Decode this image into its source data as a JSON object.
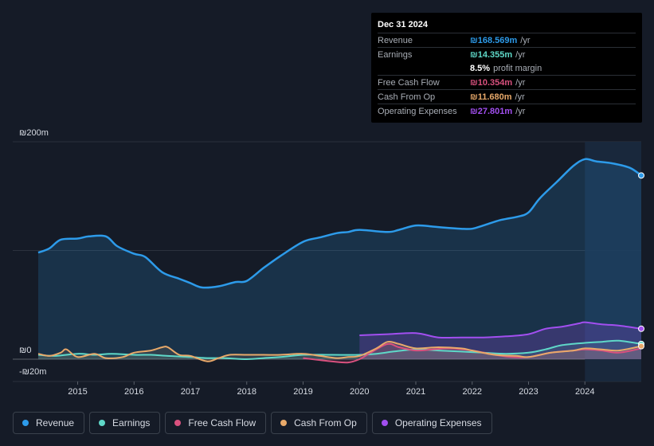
{
  "chart_data": {
    "type": "area",
    "currency_symbol": "₪",
    "y_labels": [
      "₪200m",
      "₪0",
      "-₪20m"
    ],
    "ylim": [
      -20,
      200
    ],
    "x_ticks": [
      "2015",
      "2016",
      "2017",
      "2018",
      "2019",
      "2020",
      "2021",
      "2022",
      "2023",
      "2024"
    ],
    "x_tick_values": [
      2015,
      2016,
      2017,
      2018,
      2019,
      2020,
      2021,
      2022,
      2023,
      2024
    ],
    "xlim": [
      2014.3,
      2025.0
    ],
    "forecast_start": 2024.0,
    "series": [
      {
        "name": "Revenue",
        "color": "#2d9bea",
        "fill": true,
        "x": [
          2014.3,
          2014.5,
          2014.7,
          2015.0,
          2015.2,
          2015.5,
          2015.7,
          2016.0,
          2016.2,
          2016.5,
          2016.8,
          2017.0,
          2017.2,
          2017.5,
          2017.8,
          2018.0,
          2018.3,
          2018.6,
          2019.0,
          2019.3,
          2019.6,
          2019.8,
          2020.0,
          2020.5,
          2020.7,
          2021.0,
          2021.3,
          2021.5,
          2021.8,
          2022.0,
          2022.2,
          2022.5,
          2022.8,
          2023.0,
          2023.2,
          2023.5,
          2023.8,
          2024.0,
          2024.2,
          2024.5,
          2024.8,
          2025.0
        ],
        "values": [
          98,
          102,
          110,
          111,
          113,
          113,
          104,
          97,
          94,
          80,
          74,
          70,
          66,
          67,
          71,
          72,
          84,
          95,
          108,
          112,
          116,
          117,
          119,
          117,
          119,
          123,
          122,
          121,
          120,
          120,
          123,
          128,
          131,
          135,
          148,
          163,
          178,
          184,
          182,
          180,
          176,
          169
        ]
      },
      {
        "name": "Earnings",
        "color": "#5fd8c8",
        "fill": false,
        "x": [
          2014.3,
          2014.6,
          2015.0,
          2015.3,
          2015.6,
          2016.0,
          2016.3,
          2016.6,
          2017.0,
          2017.3,
          2017.6,
          2018.0,
          2018.3,
          2018.6,
          2019.0,
          2019.5,
          2020.0,
          2020.3,
          2020.6,
          2021.0,
          2021.4,
          2021.8,
          2022.2,
          2022.6,
          2023.0,
          2023.3,
          2023.6,
          2024.0,
          2024.3,
          2024.6,
          2025.0
        ],
        "values": [
          4,
          3,
          5,
          4,
          5,
          4,
          4,
          3,
          2,
          1,
          1,
          0,
          1,
          2,
          4,
          4,
          4,
          5,
          7,
          9,
          8,
          7,
          6,
          5,
          6,
          9,
          13,
          15,
          16,
          17,
          14
        ]
      },
      {
        "name": "Free Cash Flow",
        "color": "#d9517e",
        "fill": false,
        "x": [
          2019.0,
          2019.5,
          2019.8,
          2020.0,
          2020.2,
          2020.5,
          2020.7,
          2021.0,
          2021.3,
          2021.6,
          2022.0,
          2022.4,
          2022.7,
          2023.0,
          2023.4,
          2023.8,
          2024.0,
          2024.3,
          2024.6,
          2025.0
        ],
        "values": [
          1,
          -2,
          -3,
          0,
          6,
          14,
          11,
          8,
          9,
          10,
          8,
          4,
          2,
          2,
          6,
          8,
          9,
          8,
          6,
          10
        ]
      },
      {
        "name": "Cash From Op",
        "color": "#e8a96a",
        "fill": false,
        "x": [
          2014.3,
          2014.5,
          2014.7,
          2014.8,
          2015.0,
          2015.3,
          2015.5,
          2015.8,
          2016.0,
          2016.3,
          2016.5,
          2016.6,
          2016.8,
          2017.0,
          2017.3,
          2017.5,
          2017.7,
          2018.0,
          2018.3,
          2018.6,
          2019.0,
          2019.3,
          2019.6,
          2019.8,
          2020.0,
          2020.3,
          2020.5,
          2020.7,
          2021.0,
          2021.4,
          2021.8,
          2022.0,
          2022.4,
          2022.8,
          2023.0,
          2023.4,
          2023.8,
          2024.0,
          2024.3,
          2024.6,
          2025.0
        ],
        "values": [
          5,
          3,
          6,
          9,
          2,
          5,
          1,
          2,
          6,
          8,
          11,
          11,
          4,
          3,
          -2,
          1,
          4,
          4,
          4,
          4,
          5,
          3,
          1,
          2,
          3,
          10,
          16,
          14,
          10,
          11,
          10,
          8,
          4,
          3,
          2,
          6,
          8,
          10,
          9,
          8,
          12
        ]
      },
      {
        "name": "Operating Expenses",
        "color": "#a24ff0",
        "fill": true,
        "x": [
          2020.0,
          2020.5,
          2021.0,
          2021.4,
          2021.8,
          2022.2,
          2022.6,
          2023.0,
          2023.3,
          2023.6,
          2023.9,
          2024.0,
          2024.3,
          2024.6,
          2025.0
        ],
        "values": [
          22,
          23,
          24,
          20,
          20,
          20,
          21,
          23,
          28,
          30,
          33,
          34,
          32,
          31,
          28
        ]
      }
    ]
  },
  "tooltip": {
    "date": "Dec 31 2024",
    "rows": [
      {
        "label": "Revenue",
        "value": "₪168.569m",
        "unit": "/yr",
        "color": "#2d9bea"
      },
      {
        "label": "Earnings",
        "value": "₪14.355m",
        "unit": "/yr",
        "color": "#5fd8c8"
      },
      {
        "label": "Free Cash Flow",
        "value": "₪10.354m",
        "unit": "/yr",
        "color": "#d9517e"
      },
      {
        "label": "Cash From Op",
        "value": "₪11.680m",
        "unit": "/yr",
        "color": "#e8a96a"
      },
      {
        "label": "Operating Expenses",
        "value": "₪27.801m",
        "unit": "/yr",
        "color": "#a24ff0"
      }
    ],
    "profit_margin_value": "8.5%",
    "profit_margin_text": "profit margin"
  },
  "legend": [
    {
      "label": "Revenue",
      "color": "#2d9bea"
    },
    {
      "label": "Earnings",
      "color": "#5fd8c8"
    },
    {
      "label": "Free Cash Flow",
      "color": "#d9517e"
    },
    {
      "label": "Cash From Op",
      "color": "#e8a96a"
    },
    {
      "label": "Operating Expenses",
      "color": "#a24ff0"
    }
  ]
}
